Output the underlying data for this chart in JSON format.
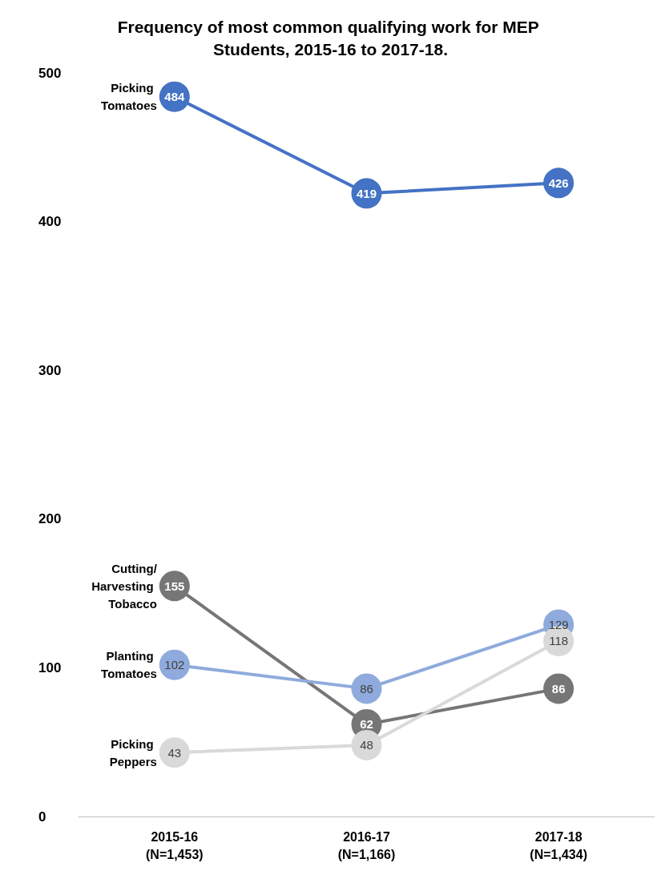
{
  "chart_data": {
    "type": "line",
    "title": "Frequency of most common qualifying work for MEP Students, 2015-16 to 2017-18.",
    "categories": [
      "2015-16\n(N=1,453)",
      "2016-17\n(N=1,166)",
      "2017-18\n(N=1,434)"
    ],
    "series": [
      {
        "name": "Picking Tomatoes",
        "color": "#4472c4",
        "values": [
          484,
          419,
          426
        ]
      },
      {
        "name": "Cutting/Harvesting Tobacco",
        "color": "#767676",
        "values": [
          155,
          62,
          86
        ]
      },
      {
        "name": "Planting Tomatoes",
        "color": "#8faadc",
        "values": [
          102,
          86,
          129
        ]
      },
      {
        "name": "Picking Peppers",
        "color": "#d9d9d9",
        "values": [
          43,
          48,
          118
        ]
      }
    ],
    "ylim": [
      0,
      500
    ],
    "yticks": [
      0,
      100,
      200,
      300,
      400,
      500
    ],
    "grid": false,
    "legend": false,
    "marker": "circle",
    "line_style": "solid",
    "data_labels": true
  }
}
